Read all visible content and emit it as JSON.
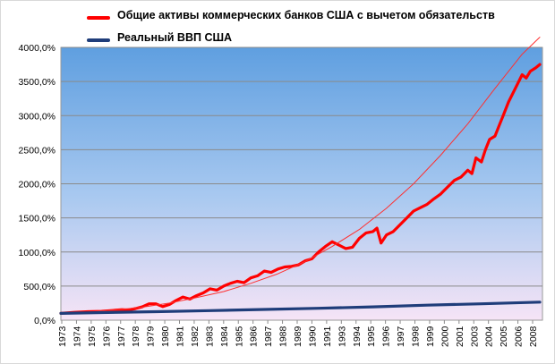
{
  "chart_data": {
    "type": "line",
    "title": "",
    "xlabel": "",
    "ylabel": "",
    "ylim": [
      0,
      4000
    ],
    "y_ticks": [
      "0,0%",
      "500,0%",
      "1000,0%",
      "1500,0%",
      "2000,0%",
      "2500,0%",
      "3000,0%",
      "3500,0%",
      "4000,0%"
    ],
    "x_tick_labels": [
      "1973",
      "1974",
      "1975",
      "1976",
      "1977",
      "1978",
      "1979",
      "1980",
      "1981",
      "1982",
      "1983",
      "1984",
      "1985",
      "1986",
      "1987",
      "1988",
      "1989",
      "1990",
      "1991",
      "1993",
      "1994",
      "1995",
      "1996",
      "1997",
      "1998",
      "1999",
      "2000",
      "2001",
      "2003",
      "2004",
      "2005",
      "2006",
      "2008"
    ],
    "legend_position": "top",
    "grid": true,
    "series": [
      {
        "name": "Общие активы коммерческих банков США с вычетом обязательств",
        "color": "#ff0000",
        "points": [
          [
            1973,
            100
          ],
          [
            1974,
            115
          ],
          [
            1975,
            125
          ],
          [
            1976,
            130
          ],
          [
            1977,
            145
          ],
          [
            1977.5,
            155
          ],
          [
            1978,
            150
          ],
          [
            1978.5,
            170
          ],
          [
            1979,
            195
          ],
          [
            1979.5,
            240
          ],
          [
            1980,
            240
          ],
          [
            1980.5,
            200
          ],
          [
            1981,
            230
          ],
          [
            1981.5,
            290
          ],
          [
            1982,
            340
          ],
          [
            1982.5,
            310
          ],
          [
            1983,
            360
          ],
          [
            1983.5,
            400
          ],
          [
            1984,
            460
          ],
          [
            1984.5,
            440
          ],
          [
            1985,
            500
          ],
          [
            1985.5,
            540
          ],
          [
            1986,
            570
          ],
          [
            1986.5,
            550
          ],
          [
            1987,
            620
          ],
          [
            1987.5,
            650
          ],
          [
            1988,
            720
          ],
          [
            1988.5,
            700
          ],
          [
            1989,
            750
          ],
          [
            1989.5,
            780
          ],
          [
            1990,
            790
          ],
          [
            1990.5,
            810
          ],
          [
            1991,
            870
          ],
          [
            1991.5,
            900
          ],
          [
            1992,
            1000
          ],
          [
            1992.5,
            1080
          ],
          [
            1993,
            1150
          ],
          [
            1993.5,
            1100
          ],
          [
            1994,
            1050
          ],
          [
            1994.5,
            1070
          ],
          [
            1995,
            1200
          ],
          [
            1995.5,
            1280
          ],
          [
            1996,
            1300
          ],
          [
            1996.3,
            1350
          ],
          [
            1996.6,
            1130
          ],
          [
            1997,
            1250
          ],
          [
            1997.5,
            1300
          ],
          [
            1998,
            1400
          ],
          [
            1998.5,
            1500
          ],
          [
            1999,
            1600
          ],
          [
            1999.5,
            1650
          ],
          [
            2000,
            1700
          ],
          [
            2000.5,
            1780
          ],
          [
            2001,
            1850
          ],
          [
            2001.5,
            1950
          ],
          [
            2002,
            2050
          ],
          [
            2002.5,
            2100
          ],
          [
            2003,
            2200
          ],
          [
            2003.3,
            2150
          ],
          [
            2003.6,
            2380
          ],
          [
            2004,
            2320
          ],
          [
            2004.3,
            2500
          ],
          [
            2004.6,
            2650
          ],
          [
            2005,
            2700
          ],
          [
            2005.3,
            2850
          ],
          [
            2005.6,
            3000
          ],
          [
            2006,
            3200
          ],
          [
            2006.5,
            3400
          ],
          [
            2007,
            3600
          ],
          [
            2007.3,
            3550
          ],
          [
            2007.6,
            3650
          ],
          [
            2008,
            3700
          ],
          [
            2008.3,
            3750
          ]
        ]
      },
      {
        "name": "",
        "color": "#ff3030",
        "trend": true,
        "points": [
          [
            1973,
            100
          ],
          [
            1975,
            120
          ],
          [
            1977,
            150
          ],
          [
            1979,
            190
          ],
          [
            1981,
            250
          ],
          [
            1983,
            330
          ],
          [
            1985,
            420
          ],
          [
            1987,
            540
          ],
          [
            1989,
            680
          ],
          [
            1991,
            860
          ],
          [
            1993,
            1080
          ],
          [
            1995,
            1330
          ],
          [
            1997,
            1640
          ],
          [
            1999,
            2000
          ],
          [
            2001,
            2420
          ],
          [
            2003,
            2880
          ],
          [
            2005,
            3400
          ],
          [
            2007,
            3900
          ],
          [
            2008.3,
            4150
          ]
        ]
      },
      {
        "name": "Реальный ВВП США",
        "color": "#1f3d7a",
        "points": [
          [
            1973,
            100
          ],
          [
            1976,
            112
          ],
          [
            1980,
            125
          ],
          [
            1984,
            140
          ],
          [
            1988,
            158
          ],
          [
            1992,
            175
          ],
          [
            1996,
            195
          ],
          [
            2000,
            220
          ],
          [
            2004,
            240
          ],
          [
            2008.3,
            265
          ]
        ]
      }
    ]
  }
}
